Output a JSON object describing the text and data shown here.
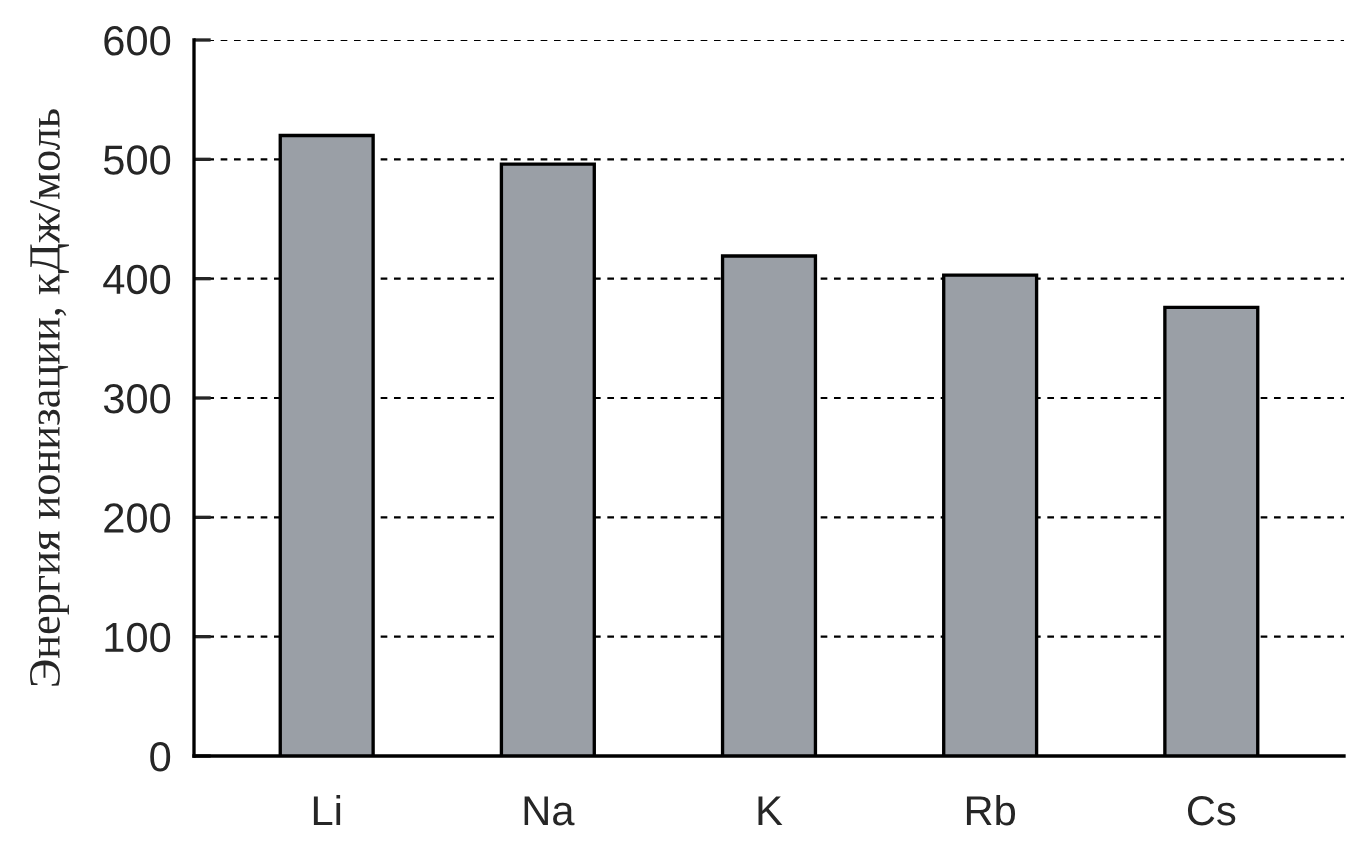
{
  "chart_data": {
    "type": "bar",
    "ylabel": "Энергия ионизации, кДж/моль",
    "categories": [
      "Li",
      "Na",
      "K",
      "Rb",
      "Cs"
    ],
    "values": [
      520,
      496,
      419,
      403,
      376
    ],
    "color": "#9a9fa6",
    "ylim": [
      0,
      600
    ],
    "yticks": [
      0,
      100,
      200,
      300,
      400,
      500,
      600
    ],
    "grid": "y",
    "line_style": "dashed"
  }
}
